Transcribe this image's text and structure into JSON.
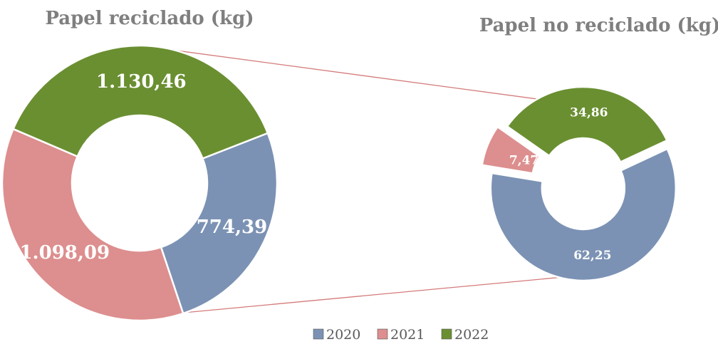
{
  "colors": {
    "2020": "#7b92b4",
    "2021": "#dd8e8e",
    "2022": "#6a8f31",
    "connector": "#d47a7a"
  },
  "chart_data": [
    {
      "type": "pie",
      "title": "Papel reciclado (kg)",
      "categories": [
        "2020",
        "2021",
        "2022"
      ],
      "values": [
        774.39,
        1098.09,
        1130.46
      ],
      "labels": [
        "774,39",
        "1.098,09",
        "1.130,46"
      ],
      "legend": "bottom"
    },
    {
      "type": "pie",
      "title": "Papel no reciclado (kg)",
      "categories": [
        "2020",
        "2021",
        "2022"
      ],
      "values": [
        62.25,
        7.47,
        34.86
      ],
      "labels": [
        "62,25",
        "7,47",
        "34,86"
      ],
      "legend": "bottom"
    }
  ],
  "legend": [
    "2020",
    "2021",
    "2022"
  ]
}
